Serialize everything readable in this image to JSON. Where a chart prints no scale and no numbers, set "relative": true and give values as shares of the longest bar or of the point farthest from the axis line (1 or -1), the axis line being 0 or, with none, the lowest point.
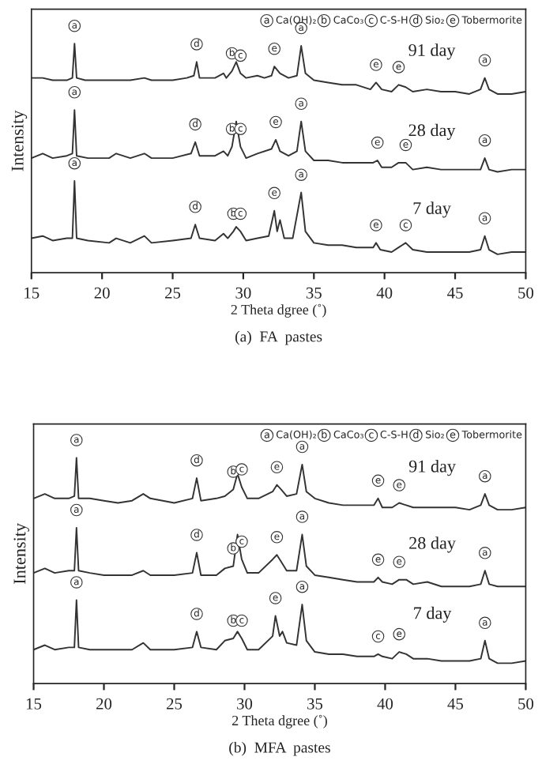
{
  "chart_data": [
    {
      "type": "line",
      "title": "(a)  FA  pastes",
      "xlabel": "2 Theta dgree (˚)",
      "ylabel": "Intensity",
      "relative": true,
      "legend": "right",
      "xlim": [
        15,
        50
      ],
      "xticks": [
        15,
        20,
        25,
        30,
        35,
        40,
        45,
        50
      ],
      "grid": false,
      "series": [
        {
          "name": "91 day",
          "color": "#333333",
          "x": [
            15,
            15.8,
            16.5,
            17.5,
            17.9,
            18.05,
            18.2,
            18.8,
            20,
            21,
            22,
            23,
            23.5,
            25,
            26,
            26.5,
            26.7,
            26.9,
            28,
            28.6,
            28.8,
            29.2,
            29.5,
            29.8,
            30.2,
            31,
            31.5,
            32,
            32.2,
            32.6,
            33.2,
            33.8,
            34.1,
            34.4,
            35,
            36,
            37,
            38,
            39,
            39.4,
            39.8,
            40.5,
            41,
            41.5,
            42,
            43,
            44,
            45,
            46,
            46.8,
            47.1,
            47.4,
            48,
            49,
            50
          ],
          "values": [
            0.85,
            0.85,
            0.84,
            0.84,
            0.85,
            1.0,
            0.85,
            0.84,
            0.84,
            0.84,
            0.84,
            0.85,
            0.84,
            0.84,
            0.85,
            0.86,
            0.92,
            0.85,
            0.85,
            0.87,
            0.85,
            0.88,
            0.92,
            0.87,
            0.85,
            0.86,
            0.85,
            0.86,
            0.9,
            0.87,
            0.85,
            0.86,
            0.99,
            0.87,
            0.84,
            0.83,
            0.82,
            0.82,
            0.8,
            0.83,
            0.8,
            0.79,
            0.82,
            0.81,
            0.79,
            0.8,
            0.79,
            0.79,
            0.78,
            0.8,
            0.85,
            0.8,
            0.78,
            0.78,
            0.79
          ]
        },
        {
          "name": "28 day",
          "color": "#333333",
          "x": [
            15,
            15.8,
            16.5,
            17.5,
            17.9,
            18.05,
            18.2,
            19,
            20.5,
            21,
            22,
            23,
            23.5,
            25,
            26.3,
            26.6,
            26.9,
            28,
            28.6,
            28.9,
            29.2,
            29.5,
            29.8,
            30.2,
            31,
            32,
            32.3,
            32.6,
            33.2,
            33.8,
            34.1,
            34.4,
            35,
            36,
            37,
            38,
            39.2,
            39.5,
            39.8,
            40.5,
            41,
            41.5,
            42,
            43,
            44,
            45,
            46,
            46.8,
            47.1,
            47.4,
            48,
            49,
            50
          ],
          "values": [
            0.5,
            0.52,
            0.5,
            0.51,
            0.52,
            0.71,
            0.51,
            0.5,
            0.5,
            0.52,
            0.5,
            0.52,
            0.5,
            0.5,
            0.52,
            0.57,
            0.51,
            0.51,
            0.53,
            0.51,
            0.55,
            0.66,
            0.55,
            0.5,
            0.52,
            0.54,
            0.58,
            0.53,
            0.51,
            0.53,
            0.66,
            0.53,
            0.49,
            0.49,
            0.48,
            0.48,
            0.48,
            0.49,
            0.46,
            0.46,
            0.48,
            0.48,
            0.45,
            0.46,
            0.45,
            0.45,
            0.45,
            0.45,
            0.5,
            0.45,
            0.44,
            0.45,
            0.45
          ]
        },
        {
          "name": "7 day",
          "color": "#333333",
          "x": [
            15,
            15.8,
            16.5,
            17.5,
            17.9,
            18.05,
            18.2,
            19,
            20.5,
            21,
            22,
            23,
            23.5,
            25,
            26.3,
            26.6,
            26.9,
            28,
            28.6,
            28.9,
            29.3,
            29.5,
            29.8,
            30.2,
            31,
            31.8,
            32.2,
            32.4,
            32.6,
            32.9,
            33.5,
            34.1,
            34.4,
            35,
            36,
            37,
            38,
            39.2,
            39.4,
            39.7,
            40.5,
            41,
            41.5,
            42,
            43,
            44,
            45,
            46,
            46.8,
            47.1,
            47.4,
            48,
            49,
            50
          ],
          "values": [
            0.15,
            0.16,
            0.14,
            0.15,
            0.15,
            0.4,
            0.15,
            0.14,
            0.13,
            0.15,
            0.13,
            0.16,
            0.13,
            0.14,
            0.15,
            0.21,
            0.15,
            0.14,
            0.17,
            0.15,
            0.18,
            0.2,
            0.18,
            0.14,
            0.15,
            0.16,
            0.27,
            0.18,
            0.23,
            0.15,
            0.15,
            0.35,
            0.18,
            0.13,
            0.12,
            0.12,
            0.11,
            0.11,
            0.13,
            0.1,
            0.09,
            0.11,
            0.13,
            0.1,
            0.09,
            0.09,
            0.09,
            0.09,
            0.1,
            0.16,
            0.1,
            0.08,
            0.09,
            0.09
          ]
        }
      ],
      "annotations": [
        "a",
        "Ca(OH)₂",
        "b",
        "CaCo₃",
        "c",
        "C-S-H",
        "d",
        "Sio₂",
        "e",
        "Tobermorite",
        {
          "text": "a",
          "x": 18.05,
          "y": 1.0
        },
        {
          "text": "d",
          "x": 26.7,
          "y": 0.92
        },
        {
          "text": "b",
          "x": 29.2,
          "y": 0.88
        },
        {
          "text": "c",
          "x": 29.8,
          "y": 0.87
        },
        {
          "text": "e",
          "x": 32.2,
          "y": 0.9
        },
        {
          "text": "a",
          "x": 34.1,
          "y": 0.99
        },
        {
          "text": "e",
          "x": 39.4,
          "y": 0.83
        },
        {
          "text": "e",
          "x": 41,
          "y": 0.82
        },
        {
          "text": "a",
          "x": 47.1,
          "y": 0.85
        },
        {
          "text": "a",
          "x": 18.05,
          "y": 0.71
        },
        {
          "text": "d",
          "x": 26.6,
          "y": 0.57
        },
        {
          "text": "b",
          "x": 29.2,
          "y": 0.55
        },
        {
          "text": "c",
          "x": 29.8,
          "y": 0.55
        },
        {
          "text": "e",
          "x": 32.3,
          "y": 0.58
        },
        {
          "text": "a",
          "x": 34.1,
          "y": 0.66
        },
        {
          "text": "e",
          "x": 39.5,
          "y": 0.49
        },
        {
          "text": "e",
          "x": 41.5,
          "y": 0.48
        },
        {
          "text": "a",
          "x": 47.1,
          "y": 0.5
        },
        {
          "text": "a",
          "x": 18.05,
          "y": 0.4
        },
        {
          "text": "d",
          "x": 26.6,
          "y": 0.21
        },
        {
          "text": "b",
          "x": 29.3,
          "y": 0.18
        },
        {
          "text": "c",
          "x": 29.8,
          "y": 0.18
        },
        {
          "text": "e",
          "x": 32.2,
          "y": 0.27
        },
        {
          "text": "a",
          "x": 34.1,
          "y": 0.35
        },
        {
          "text": "e",
          "x": 39.4,
          "y": 0.13
        },
        {
          "text": "c",
          "x": 41.5,
          "y": 0.13
        },
        {
          "text": "a",
          "x": 47.1,
          "y": 0.16
        }
      ]
    },
    {
      "type": "line",
      "title": "(b)  MFA  pastes",
      "xlabel": "2 Theta dgree (˚)",
      "ylabel": "Intensity",
      "relative": true,
      "legend": "right",
      "xlim": [
        15,
        50
      ],
      "xticks": [
        15,
        20,
        25,
        30,
        35,
        40,
        45,
        50
      ],
      "grid": false,
      "series": [
        {
          "name": "91 day",
          "color": "#333333",
          "x": [
            15,
            15.8,
            16.5,
            17.5,
            17.9,
            18.05,
            18.2,
            19,
            20,
            21,
            22,
            22.8,
            23.3,
            25,
            26.3,
            26.6,
            26.9,
            28,
            28.6,
            29.2,
            29.5,
            29.8,
            30.2,
            31,
            32,
            32.3,
            32.6,
            33,
            33.7,
            34.1,
            34.4,
            35,
            36,
            37,
            38,
            39.2,
            39.5,
            39.8,
            40.5,
            41,
            41.5,
            42,
            43,
            44,
            45,
            46,
            46.8,
            47.1,
            47.4,
            48,
            49,
            50
          ],
          "values": [
            0.82,
            0.84,
            0.82,
            0.82,
            0.83,
            1.0,
            0.82,
            0.82,
            0.81,
            0.8,
            0.81,
            0.84,
            0.82,
            0.8,
            0.82,
            0.91,
            0.81,
            0.82,
            0.83,
            0.86,
            0.93,
            0.87,
            0.82,
            0.82,
            0.85,
            0.88,
            0.86,
            0.83,
            0.84,
            0.97,
            0.85,
            0.82,
            0.8,
            0.79,
            0.79,
            0.79,
            0.82,
            0.78,
            0.78,
            0.8,
            0.79,
            0.78,
            0.78,
            0.78,
            0.78,
            0.77,
            0.79,
            0.84,
            0.79,
            0.77,
            0.77,
            0.78
          ]
        },
        {
          "name": "28 day",
          "color": "#333333",
          "x": [
            15,
            15.8,
            16.5,
            17.5,
            17.9,
            18.05,
            18.2,
            19,
            20,
            21,
            22,
            22.8,
            23.3,
            25,
            26.3,
            26.6,
            26.9,
            28,
            28.6,
            29.2,
            29.5,
            29.8,
            30.2,
            31,
            32,
            32.3,
            32.6,
            33,
            33.7,
            34.1,
            34.4,
            35,
            36,
            37,
            38,
            39.2,
            39.5,
            39.8,
            40.5,
            41,
            41.5,
            42,
            43,
            44,
            45,
            46,
            46.8,
            47.1,
            47.4,
            48,
            49,
            50
          ],
          "values": [
            0.49,
            0.51,
            0.49,
            0.5,
            0.5,
            0.69,
            0.5,
            0.49,
            0.48,
            0.48,
            0.48,
            0.5,
            0.48,
            0.48,
            0.49,
            0.58,
            0.48,
            0.48,
            0.51,
            0.52,
            0.66,
            0.55,
            0.49,
            0.49,
            0.55,
            0.57,
            0.54,
            0.5,
            0.5,
            0.66,
            0.52,
            0.48,
            0.47,
            0.46,
            0.45,
            0.45,
            0.47,
            0.45,
            0.44,
            0.46,
            0.46,
            0.44,
            0.45,
            0.43,
            0.43,
            0.43,
            0.44,
            0.5,
            0.44,
            0.43,
            0.43,
            0.43
          ]
        },
        {
          "name": "7 day",
          "color": "#333333",
          "x": [
            15,
            15.8,
            16.5,
            17.5,
            17.9,
            18.05,
            18.2,
            19,
            20,
            21,
            22,
            22.8,
            23.3,
            25,
            26.3,
            26.6,
            26.9,
            28,
            28.6,
            29.2,
            29.5,
            29.8,
            30.2,
            31,
            32,
            32.2,
            32.5,
            32.7,
            33,
            33.7,
            34.1,
            34.4,
            35,
            36,
            37,
            38,
            39.2,
            39.5,
            39.8,
            40.5,
            41,
            41.5,
            42,
            43,
            44,
            45,
            46,
            46.8,
            47.1,
            47.4,
            48,
            49,
            50
          ],
          "values": [
            0.15,
            0.17,
            0.15,
            0.16,
            0.16,
            0.37,
            0.16,
            0.15,
            0.15,
            0.15,
            0.15,
            0.18,
            0.15,
            0.15,
            0.16,
            0.23,
            0.16,
            0.15,
            0.19,
            0.2,
            0.23,
            0.2,
            0.15,
            0.15,
            0.21,
            0.3,
            0.21,
            0.23,
            0.18,
            0.17,
            0.35,
            0.19,
            0.14,
            0.13,
            0.13,
            0.12,
            0.12,
            0.13,
            0.12,
            0.11,
            0.14,
            0.13,
            0.11,
            0.11,
            0.1,
            0.1,
            0.1,
            0.11,
            0.19,
            0.11,
            0.09,
            0.09,
            0.1
          ]
        }
      ],
      "annotations": [
        "a",
        "Ca(OH)₂",
        "b",
        "CaCo₃",
        "c",
        "C-S-H",
        "d",
        "Sio₂",
        "e",
        "Tobermorite",
        {
          "text": "a",
          "x": 18.05,
          "y": 1.0
        },
        {
          "text": "d",
          "x": 26.6,
          "y": 0.91
        },
        {
          "text": "b",
          "x": 29.2,
          "y": 0.86
        },
        {
          "text": "c",
          "x": 29.8,
          "y": 0.87
        },
        {
          "text": "e",
          "x": 32.3,
          "y": 0.88
        },
        {
          "text": "a",
          "x": 34.1,
          "y": 0.97
        },
        {
          "text": "e",
          "x": 39.5,
          "y": 0.82
        },
        {
          "text": "e",
          "x": 41,
          "y": 0.8
        },
        {
          "text": "a",
          "x": 47.1,
          "y": 0.84
        },
        {
          "text": "a",
          "x": 18.05,
          "y": 0.69
        },
        {
          "text": "d",
          "x": 26.6,
          "y": 0.58
        },
        {
          "text": "b",
          "x": 29.2,
          "y": 0.52
        },
        {
          "text": "c",
          "x": 29.8,
          "y": 0.55
        },
        {
          "text": "e",
          "x": 32.3,
          "y": 0.57
        },
        {
          "text": "a",
          "x": 34.1,
          "y": 0.66
        },
        {
          "text": "e",
          "x": 39.5,
          "y": 0.47
        },
        {
          "text": "e",
          "x": 41,
          "y": 0.46
        },
        {
          "text": "a",
          "x": 47.1,
          "y": 0.5
        },
        {
          "text": "a",
          "x": 18.05,
          "y": 0.37
        },
        {
          "text": "d",
          "x": 26.6,
          "y": 0.23
        },
        {
          "text": "b",
          "x": 29.2,
          "y": 0.2
        },
        {
          "text": "c",
          "x": 29.8,
          "y": 0.2
        },
        {
          "text": "e",
          "x": 32.2,
          "y": 0.3
        },
        {
          "text": "a",
          "x": 34.1,
          "y": 0.35
        },
        {
          "text": "c",
          "x": 39.5,
          "y": 0.13
        },
        {
          "text": "e",
          "x": 41,
          "y": 0.14
        },
        {
          "text": "a",
          "x": 47.1,
          "y": 0.19
        }
      ]
    }
  ]
}
